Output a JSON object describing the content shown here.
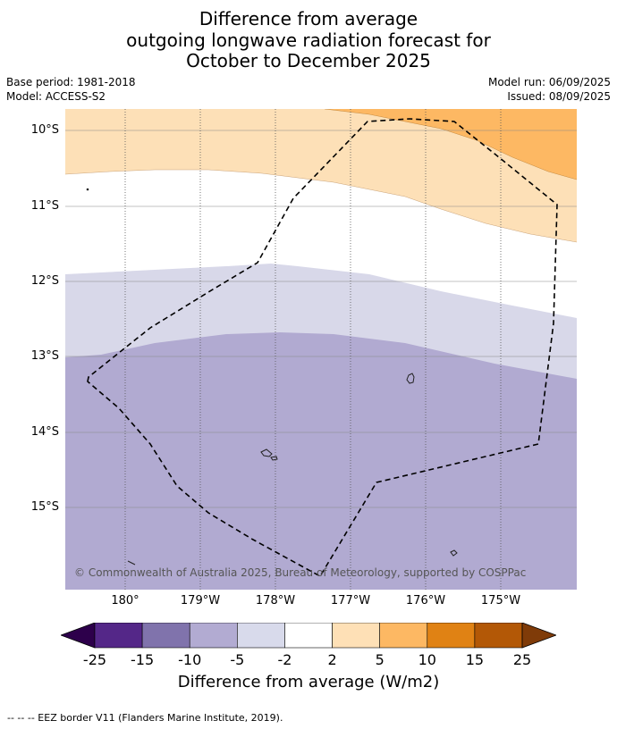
{
  "title": {
    "line1": "Difference from average",
    "line2": "outgoing longwave radiation forecast for",
    "line3": "October to December 2025"
  },
  "meta": {
    "base_period": "Base period: 1981-2018",
    "model": "Model: ACCESS-S2",
    "model_run": "Model run: 06/09/2025",
    "issued": "Issued: 08/09/2025"
  },
  "map": {
    "lat_labels": [
      "10°S",
      "11°S",
      "12°S",
      "13°S",
      "14°S",
      "15°S"
    ],
    "lon_labels": [
      "180°",
      "179°W",
      "178°W",
      "177°W",
      "176°W",
      "175°W"
    ],
    "copyright": "© Commonwealth of Australia 2025, Bureau of Meteorology, supported by COSPPac",
    "category_colors": {
      "m15_m10": "#b1aad1",
      "m10_m5": "#b1aad1",
      "m5_m2": "#d8d8e9",
      "m2_2": "#ffffff",
      "p2_p5": "#fde0b7",
      "p5_p10": "#fdb863"
    }
  },
  "colorbar": {
    "ticks": [
      "-25",
      "-15",
      "-10",
      "-5",
      "-2",
      "2",
      "5",
      "10",
      "15",
      "25"
    ],
    "colors": [
      "#542788",
      "#8073ac",
      "#b2abd2",
      "#d8daeb",
      "#ffffff",
      "#fee0b6",
      "#fdb863",
      "#e08214",
      "#b35806"
    ],
    "under_color": "#2d004b",
    "over_color": "#7f3b08",
    "label": "Difference from average (W/m2)"
  },
  "footer": "--  --  -- EEZ border V11 (Flanders Marine Institute, 2019)."
}
